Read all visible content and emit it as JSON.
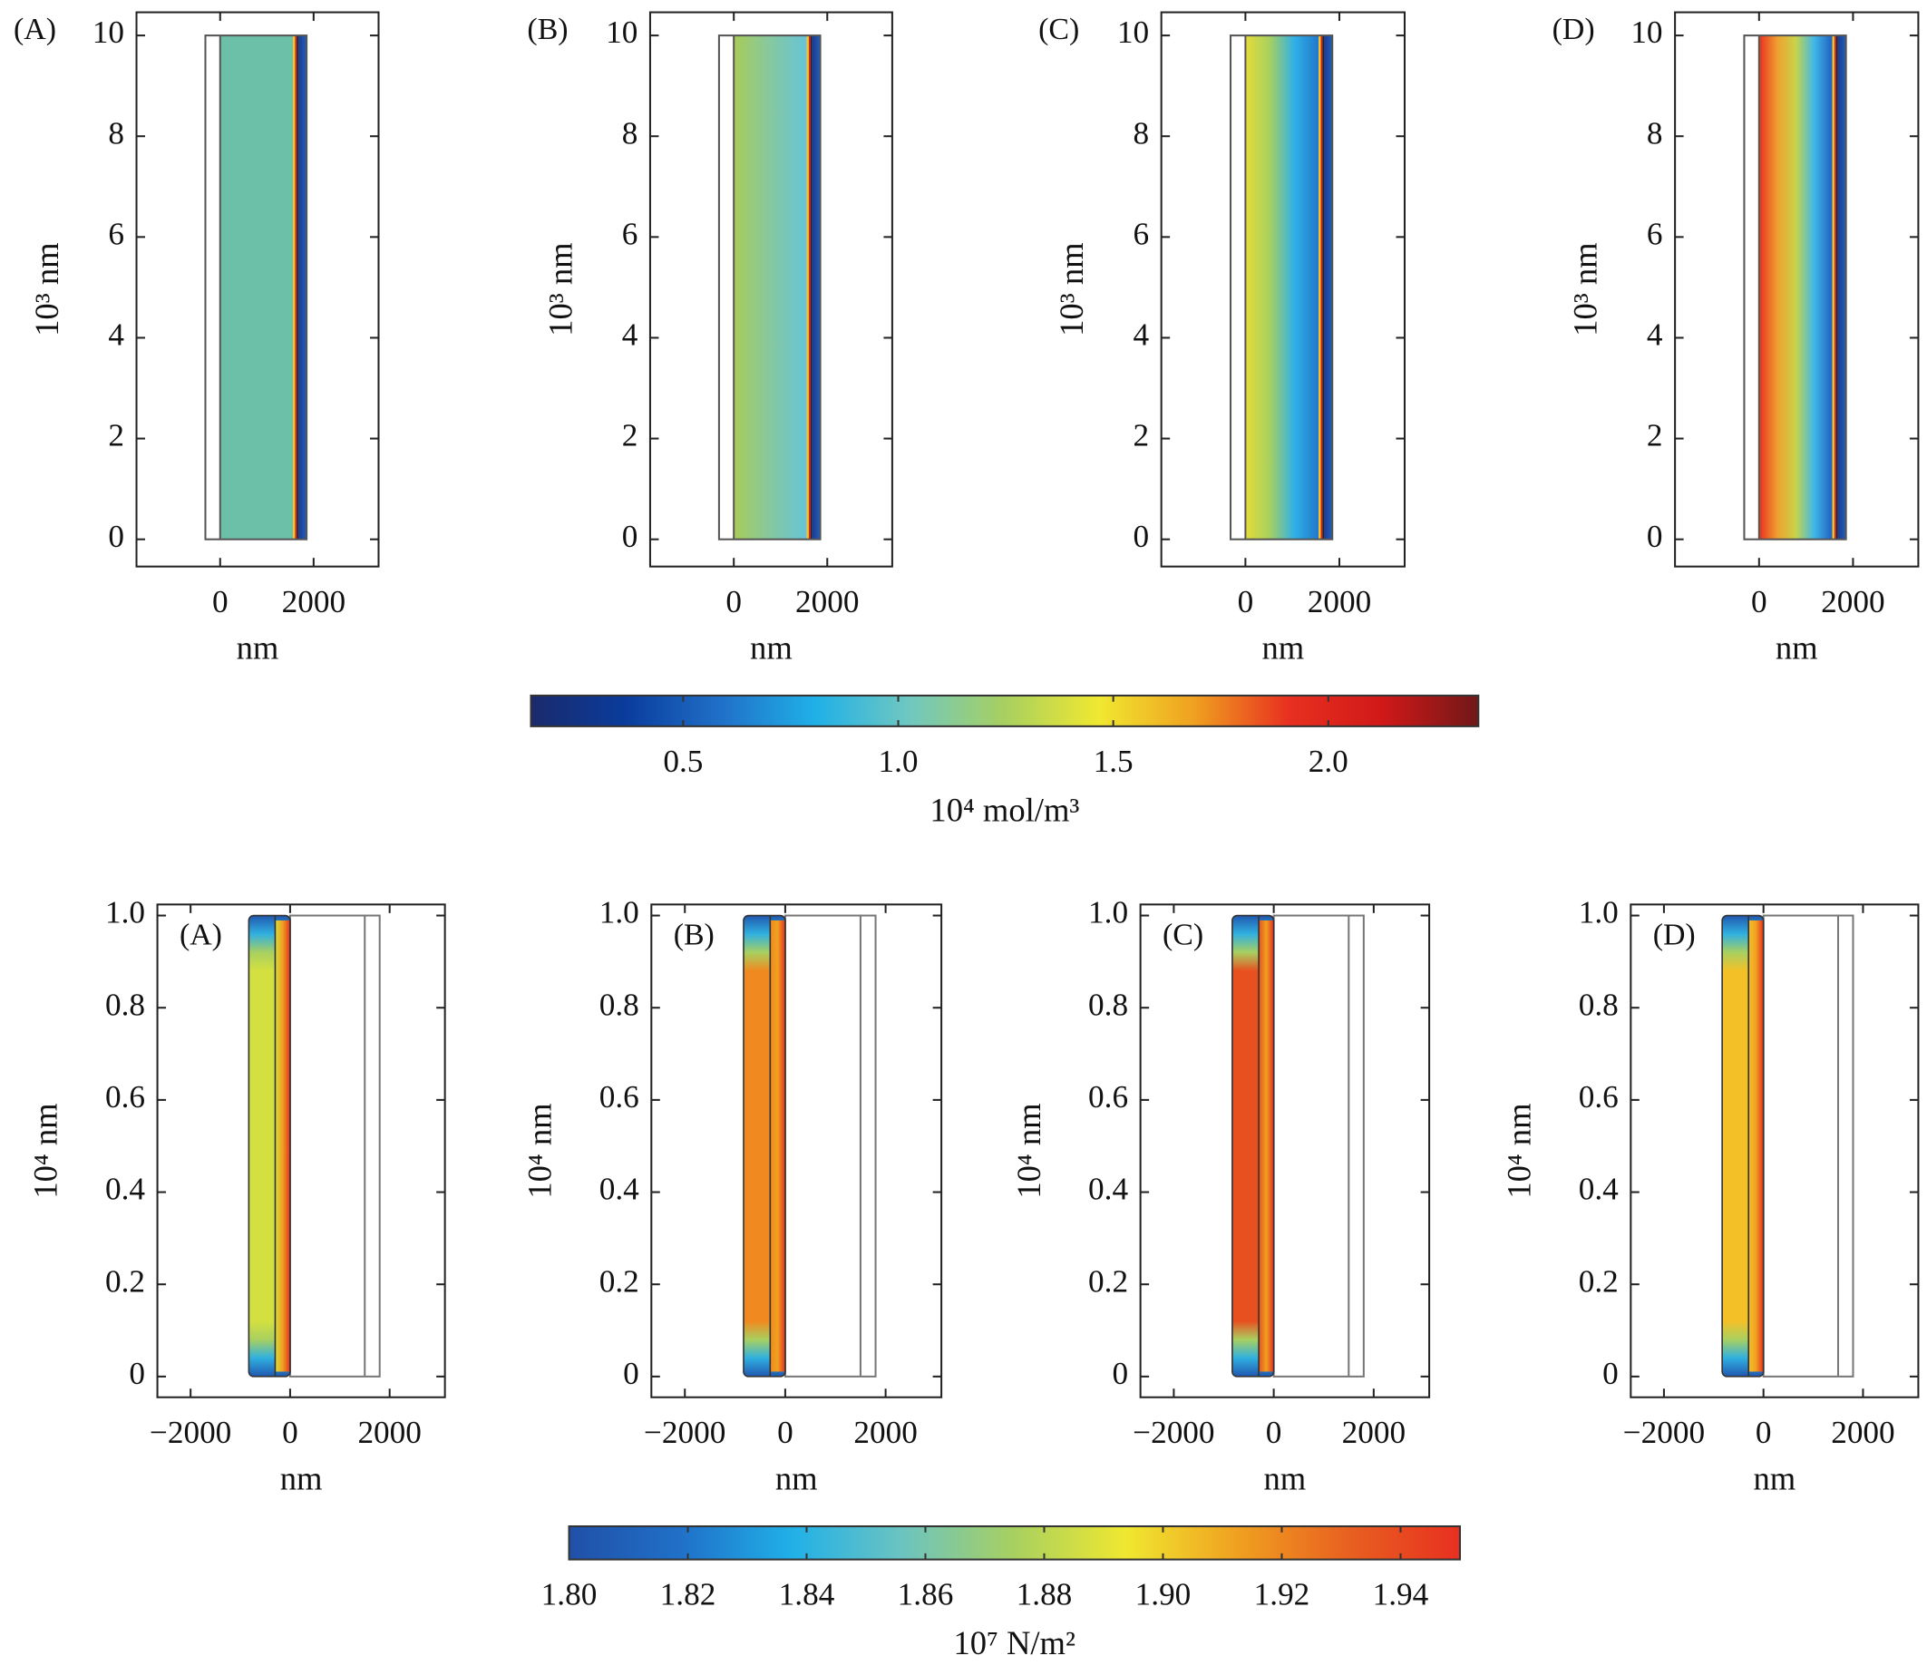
{
  "chart_data": [
    {
      "type": "heatmap",
      "label": "(A)",
      "xlabel": "nm",
      "ylabel": "10³ nm",
      "xlim": [
        -1790,
        3390
      ],
      "ylim": [
        -0.54,
        10.46
      ],
      "xticks": [
        0,
        2000
      ],
      "yticks": [
        0,
        2,
        4,
        6,
        8,
        10
      ],
      "colors": [
        "#6cc0a8",
        "#6cc0a8"
      ]
    },
    {
      "type": "heatmap",
      "label": "(B)",
      "xlabel": "nm",
      "ylabel": "10³ nm",
      "xlim": [
        -1790,
        3390
      ],
      "ylim": [
        -0.54,
        10.46
      ],
      "xticks": [
        0,
        2000
      ],
      "yticks": [
        0,
        2,
        4,
        6,
        8,
        10
      ],
      "colors": [
        "#a8cc58",
        "#86c8a0",
        "#66c4d8"
      ]
    },
    {
      "type": "heatmap",
      "label": "(C)",
      "xlabel": "nm",
      "ylabel": "10³ nm",
      "xlim": [
        -1790,
        3390
      ],
      "ylim": [
        -0.54,
        10.46
      ],
      "xticks": [
        0,
        2000
      ],
      "yticks": [
        0,
        2,
        4,
        6,
        8,
        10
      ],
      "colors": [
        "#e4dc38",
        "#a8d060",
        "#30b0e8",
        "#2078cc"
      ]
    },
    {
      "type": "heatmap",
      "label": "(D)",
      "xlabel": "nm",
      "ylabel": "10³ nm",
      "xlim": [
        -1790,
        3390
      ],
      "ylim": [
        -0.54,
        10.46
      ],
      "xticks": [
        0,
        2000
      ],
      "yticks": [
        0,
        2,
        4,
        6,
        8,
        10
      ],
      "colors": [
        "#e83020",
        "#f0a030",
        "#c8d448",
        "#40b8e8",
        "#2060c0"
      ]
    },
    {
      "type": "colorbar",
      "label": "10⁴ mol/m³",
      "xlim": [
        0.146,
        2.349
      ],
      "xticks": [
        0.5,
        {
          "value": 1,
          "label": "1.0"
        },
        1.5,
        {
          "value": 2,
          "label": "2.0"
        }
      ],
      "colors": [
        "#1a2a6c",
        "#0a3c9c",
        "#2070c8",
        "#20b0e8",
        "#70c8c0",
        "#a8d060",
        "#f0e830",
        "#f0a020",
        "#e83020",
        "#d01818",
        "#701818"
      ]
    },
    {
      "type": "stress",
      "label": "(A)",
      "xlabel": "nm",
      "ylabel": "10⁴ nm",
      "xlim": [
        -2667,
        3111
      ],
      "ylim": [
        -0.045,
        1.024
      ],
      "xticks": [
        {
          "value": -2000,
          "label": "−2000"
        },
        0,
        2000
      ],
      "yticks": [
        0,
        0.2,
        0.4,
        0.6,
        0.8,
        {
          "value": 1,
          "label": "1.0"
        }
      ],
      "colors": [
        "#d4e040",
        "#2058b0"
      ]
    },
    {
      "type": "stress",
      "label": "(B)",
      "xlabel": "nm",
      "ylabel": "10⁴ nm",
      "xlim": [
        -2667,
        3111
      ],
      "ylim": [
        -0.045,
        1.024
      ],
      "xticks": [
        {
          "value": -2000,
          "label": "−2000"
        },
        0,
        2000
      ],
      "yticks": [
        0,
        0.2,
        0.4,
        0.6,
        0.8,
        {
          "value": 1,
          "label": "1.0"
        }
      ],
      "colors": [
        "#f08a20",
        "#2058b0"
      ]
    },
    {
      "type": "stress",
      "label": "(C)",
      "xlabel": "nm",
      "ylabel": "10⁴ nm",
      "xlim": [
        -2667,
        3111
      ],
      "ylim": [
        -0.045,
        1.024
      ],
      "xticks": [
        {
          "value": -2000,
          "label": "−2000"
        },
        0,
        2000
      ],
      "yticks": [
        0,
        0.2,
        0.4,
        0.6,
        0.8,
        {
          "value": 1,
          "label": "1.0"
        }
      ],
      "colors": [
        "#e85020",
        "#2058b0"
      ]
    },
    {
      "type": "stress",
      "label": "(D)",
      "xlabel": "nm",
      "ylabel": "10⁴ nm",
      "xlim": [
        -2667,
        3111
      ],
      "ylim": [
        -0.045,
        1.024
      ],
      "xticks": [
        {
          "value": -2000,
          "label": "−2000"
        },
        0,
        2000
      ],
      "yticks": [
        0,
        0.2,
        0.4,
        0.6,
        0.8,
        {
          "value": 1,
          "label": "1.0"
        }
      ],
      "colors": [
        "#f4c028",
        "#2058b0"
      ]
    },
    {
      "type": "colorbar",
      "label": "10⁷ N/m²",
      "xlim": [
        1.8,
        1.95
      ],
      "xticks": [
        {
          "value": 1.8,
          "label": "1.80"
        },
        {
          "value": 1.82,
          "label": "1.82"
        },
        {
          "value": 1.84,
          "label": "1.84"
        },
        {
          "value": 1.86,
          "label": "1.86"
        },
        {
          "value": 1.88,
          "label": "1.88"
        },
        {
          "value": 1.9,
          "label": "1.90"
        },
        {
          "value": 1.92,
          "label": "1.92"
        },
        {
          "value": 1.94,
          "label": "1.94"
        }
      ],
      "colors": [
        "#2050a8",
        "#2070c8",
        "#20b0e8",
        "#6cc4c0",
        "#a8d060",
        "#f0e830",
        "#f0a020",
        "#e86020",
        "#e83020"
      ]
    }
  ]
}
